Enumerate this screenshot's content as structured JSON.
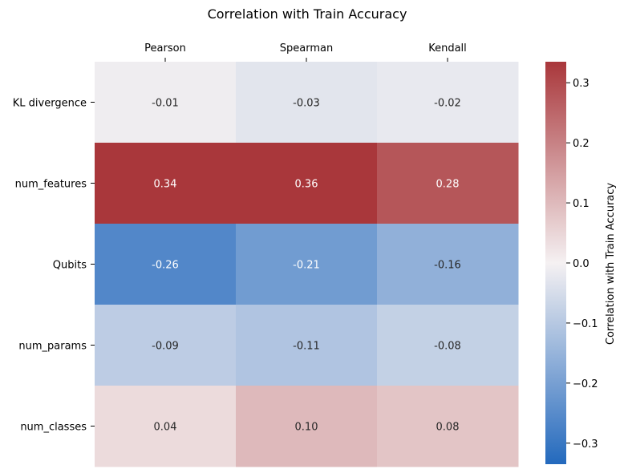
{
  "chart_data": {
    "type": "heatmap",
    "title": "Correlation with Train Accuracy",
    "columns": [
      "Pearson",
      "Spearman",
      "Kendall"
    ],
    "rows": [
      "KL divergence",
      "num_features",
      "Qubits",
      "num_params",
      "num_classes"
    ],
    "values": [
      [
        -0.01,
        -0.03,
        -0.02
      ],
      [
        0.34,
        0.36,
        0.28
      ],
      [
        -0.26,
        -0.21,
        -0.16
      ],
      [
        -0.09,
        -0.11,
        -0.08
      ],
      [
        0.04,
        0.1,
        0.08
      ]
    ],
    "annotations": [
      [
        "-0.01",
        "-0.03",
        "-0.02"
      ],
      [
        "0.34",
        "0.36",
        "0.28"
      ],
      [
        "-0.26",
        "-0.21",
        "-0.16"
      ],
      [
        "-0.09",
        "-0.11",
        "-0.08"
      ],
      [
        "0.04",
        "0.10",
        "0.08"
      ]
    ],
    "colorbar": {
      "label": "Correlation with Train Accuracy",
      "range": [
        -0.335,
        0.335
      ],
      "ticks": [
        0.3,
        0.2,
        0.1,
        0.0,
        -0.1,
        -0.2,
        -0.3
      ],
      "tick_labels": [
        "0.3",
        "0.2",
        "0.1",
        "0.0",
        "−0.1",
        "−0.2",
        "−0.3"
      ],
      "colormap": "vlag",
      "colors": {
        "negative_end": "#2369bd",
        "center": "#f5f1f2",
        "positive_end": "#a9373b"
      }
    }
  }
}
